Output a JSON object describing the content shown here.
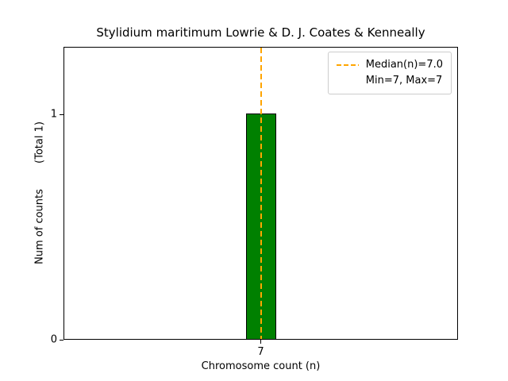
{
  "chart_data": {
    "type": "bar",
    "title": "Stylidium maritimum Lowrie & D. J. Coates & Kenneally",
    "categories": [
      "7"
    ],
    "values": [
      1
    ],
    "xlabel": "Chromosome count (n)",
    "ylabel": "Num of counts",
    "ylabel_annotation": "(Total 1)",
    "ylim": [
      0,
      1.3
    ],
    "yticks": [
      0,
      1
    ],
    "xticks": [
      "7"
    ],
    "grid": false,
    "bar_color": "#008000",
    "bar_edge_color": "#000000",
    "median_line": {
      "x": 7.0,
      "color": "#ffa500",
      "style": "dashed"
    },
    "legend": {
      "position": "upper right",
      "entries": [
        {
          "label": "Median(n)=7.0",
          "sample": "dashed-orange-line"
        },
        {
          "label": "Min=7, Max=7",
          "sample": "none"
        }
      ]
    }
  }
}
